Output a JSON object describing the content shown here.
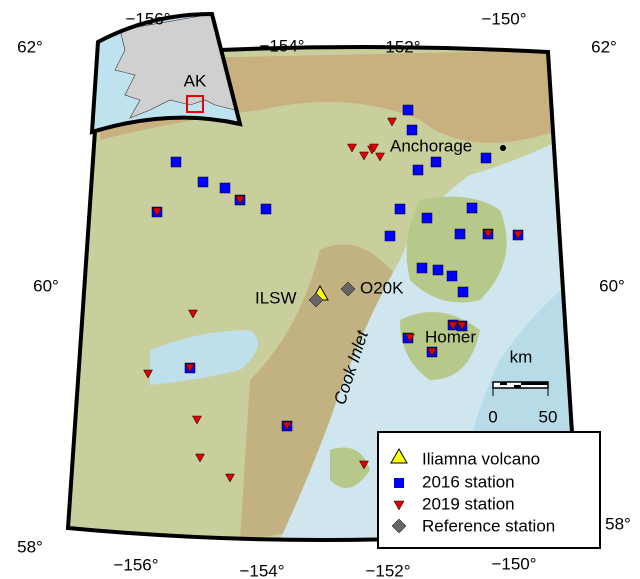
{
  "axes": {
    "top_labels": [
      "−156°",
      "−154°",
      "−152°",
      "−150°"
    ],
    "bottom_labels": [
      "−156°",
      "−154°",
      "−152°",
      "−150°"
    ],
    "left_labels": [
      "62°",
      "60°",
      "58°"
    ],
    "right_labels": [
      "62°",
      "60°",
      "58°"
    ]
  },
  "inset": {
    "label": "AK"
  },
  "places": {
    "anchorage": "Anchorage",
    "ilsw": "ILSW",
    "o20k": "O20K",
    "homer": "Homer",
    "cook_inlet": "Cook Inlet"
  },
  "scale_bar": {
    "unit": "km",
    "ticks": [
      "0",
      "50"
    ]
  },
  "legend": [
    "Iliamna volcano",
    "2016 station",
    "2019 station",
    "Reference station"
  ]
}
